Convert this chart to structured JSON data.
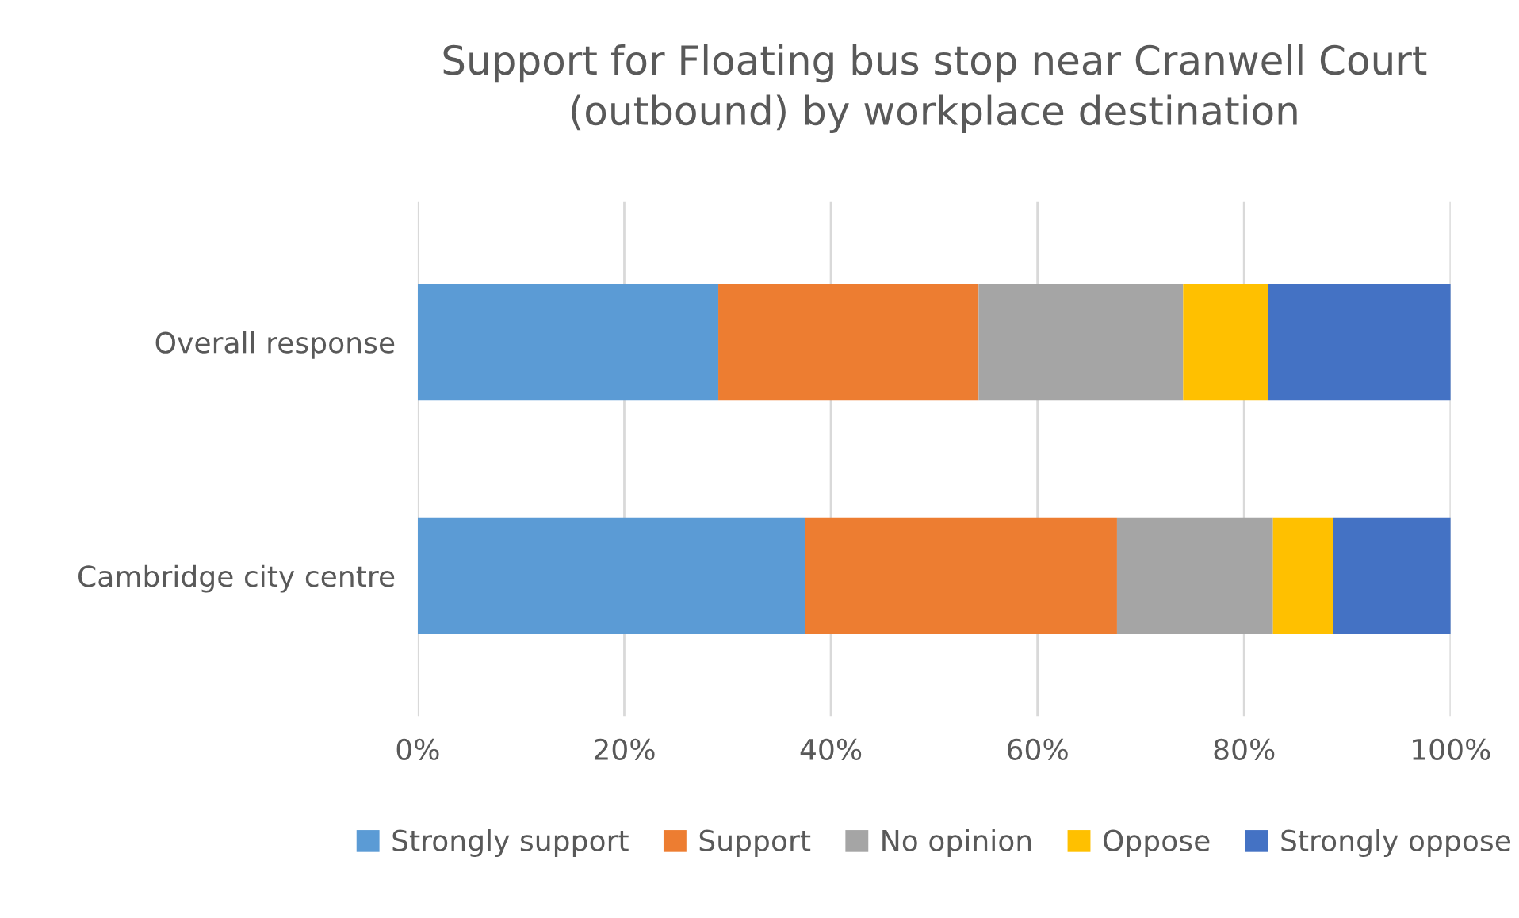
{
  "chart_data": {
    "type": "bar",
    "orientation": "horizontal",
    "stacked": true,
    "title": "Support for Floating bus stop near Cranwell Court\n(outbound) by workplace destination",
    "categories": [
      "Overall response",
      "Cambridge city centre"
    ],
    "series": [
      {
        "name": "Strongly support",
        "color": "#5b9bd5",
        "values": [
          29.1,
          37.5
        ]
      },
      {
        "name": "Support",
        "color": "#ed7d31",
        "values": [
          25.2,
          30.2
        ]
      },
      {
        "name": "No opinion",
        "color": "#a5a5a5",
        "values": [
          19.8,
          15.1
        ]
      },
      {
        "name": "Oppose",
        "color": "#ffc000",
        "values": [
          8.2,
          5.8
        ]
      },
      {
        "name": "Strongly oppose",
        "color": "#4472c4",
        "values": [
          17.7,
          11.4
        ]
      }
    ],
    "xlim": [
      0,
      100
    ],
    "xticks": [
      {
        "value": 0,
        "label": "0%"
      },
      {
        "value": 20,
        "label": "20%"
      },
      {
        "value": 40,
        "label": "40%"
      },
      {
        "value": 60,
        "label": "60%"
      },
      {
        "value": 80,
        "label": "80%"
      },
      {
        "value": 100,
        "label": "100%"
      }
    ],
    "grid": "x",
    "legend": "bottom"
  }
}
